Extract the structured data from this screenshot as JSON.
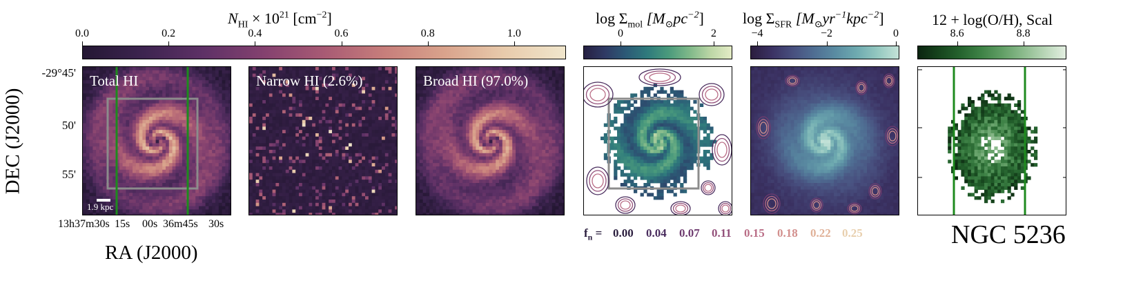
{
  "chart_data": [
    {
      "type": "heatmap",
      "title": "Total HI",
      "colorbar": {
        "label": "N_HI × 10^21 [cm^-2]",
        "ticks": [
          "0.0",
          "0.2",
          "0.4",
          "0.6",
          "0.8",
          "1.0"
        ],
        "range": [
          0.0,
          1.12
        ],
        "cmap": "pink-magma"
      },
      "xlabel": "RA (J2000)",
      "ylabel": "DEC (J2000)",
      "yticks": [
        "-29°45'",
        "50'",
        "55'"
      ],
      "xticks": [
        "13h37m30s",
        "15s",
        "00s",
        "36m45s",
        "30s"
      ],
      "scale_bar": "1.9 kpc"
    },
    {
      "type": "heatmap",
      "title": "Narrow HI (2.6%)"
    },
    {
      "type": "heatmap",
      "title": "Broad HI (97.0%)"
    },
    {
      "type": "heatmap",
      "title": "log Σmol",
      "colorbar": {
        "label": "log Σ_mol [M⊙pc^-2]",
        "ticks": [
          "0",
          "2"
        ],
        "range": [
          -0.8,
          2.4
        ],
        "cmap": "teal"
      },
      "contour_levels_fn": [
        "0.00",
        "0.04",
        "0.07",
        "0.11",
        "0.15",
        "0.18",
        "0.22",
        "0.25"
      ]
    },
    {
      "type": "heatmap",
      "title": "log ΣSFR",
      "colorbar": {
        "label": "log Σ_SFR [M⊙yr^-1kpc^-2]",
        "ticks": [
          "−4",
          "−2",
          "0"
        ],
        "range": [
          -4.2,
          0.1
        ],
        "cmap": "blue-teal"
      }
    },
    {
      "type": "heatmap",
      "title": "12 + log(O/H), Scal",
      "colorbar": {
        "label": "12 + log(O/H), Scal",
        "ticks": [
          "8.6",
          "8.8"
        ],
        "range": [
          8.48,
          8.93
        ],
        "cmap": "greens"
      }
    }
  ],
  "labels": {
    "hi_cbar_title_a": "N",
    "hi_cbar_title_sub": "HI",
    "hi_cbar_title_b": " × 10",
    "hi_cbar_title_sup": "21",
    "hi_cbar_title_c": " [cm",
    "hi_cbar_title_sup2": "−2",
    "hi_cbar_title_d": "]",
    "mol_cbar_title": "log Σ",
    "mol_sub": "mol",
    "mol_unit": " [M",
    "mol_unit_b": "pc",
    "mol_sup": "−2",
    "mol_close": "]",
    "sfr_cbar_title": "log Σ",
    "sfr_sub": "SFR",
    "sfr_unit": " [M",
    "sfr_unit_b": "yr",
    "sfr_sup": "−1",
    "sfr_unit_c": "kpc",
    "sfr_sup2": "−2",
    "sfr_close": "]",
    "oh_cbar_title": "12 + log(O/H), Scal",
    "fn_prefix": "f",
    "fn_sub": "n",
    "fn_eq": " = ",
    "galaxy": "NGC 5236",
    "sun": "⊙"
  },
  "colors": {
    "fn_levels": [
      "#2a1d3d",
      "#4a2d5e",
      "#6e3b6f",
      "#93507a",
      "#b96d86",
      "#d28f8d",
      "#e0b198",
      "#e8cfae"
    ],
    "guide_green": "#1e8a1e",
    "box_gray": "#8c8c8c"
  }
}
